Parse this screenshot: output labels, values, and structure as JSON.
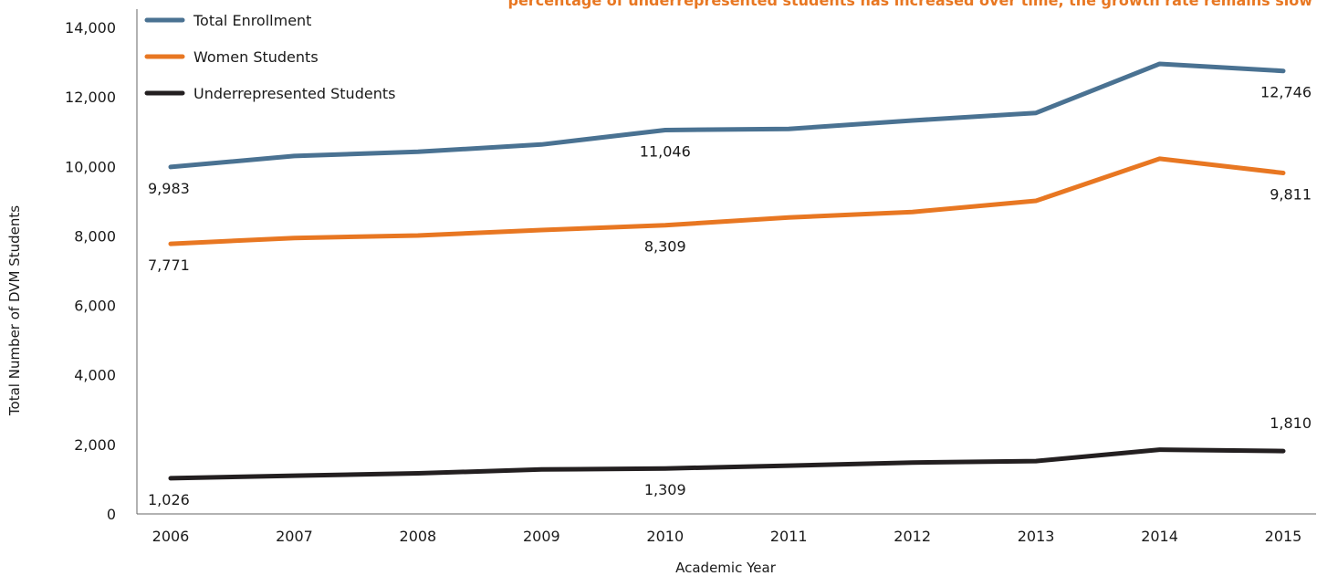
{
  "note": "percentage of underrepresented students has increased over time, the growth rate remains slow",
  "colors": {
    "accent": "#e87722",
    "axis": "#666666"
  },
  "chart_data": {
    "type": "line",
    "title": "",
    "xlabel": "Academic Year",
    "ylabel": "Total Number of DVM Students",
    "categories": [
      "2006",
      "2007",
      "2008",
      "2009",
      "2010",
      "2011",
      "2012",
      "2013",
      "2014",
      "2015"
    ],
    "ylim": [
      0,
      14000
    ],
    "yticks": [
      0,
      2000,
      4000,
      6000,
      8000,
      10000,
      12000,
      14000
    ],
    "ytick_labels": [
      "0",
      "2,000",
      "4,000",
      "6,000",
      "8,000",
      "10,000",
      "12,000",
      "14,000"
    ],
    "grid": false,
    "legend_position": "top-left",
    "series": [
      {
        "name": "Total Enrollment",
        "color": "#4a7292",
        "values": [
          9983,
          10300,
          10420,
          10630,
          11046,
          11080,
          11320,
          11540,
          12950,
          12746
        ],
        "labels": [
          {
            "index": 0,
            "text": "9,983",
            "pos": "below"
          },
          {
            "index": 4,
            "text": "11,046",
            "pos": "below"
          },
          {
            "index": 9,
            "text": "12,746",
            "pos": "below"
          }
        ]
      },
      {
        "name": "Women Students",
        "color": "#e87722",
        "values": [
          7771,
          7940,
          8010,
          8170,
          8309,
          8530,
          8690,
          9010,
          10220,
          9811
        ],
        "labels": [
          {
            "index": 0,
            "text": "7,771",
            "pos": "below"
          },
          {
            "index": 4,
            "text": "8,309",
            "pos": "below"
          },
          {
            "index": 9,
            "text": "9,811",
            "pos": "below"
          }
        ]
      },
      {
        "name": "Underrepresented Students",
        "color": "#231f20",
        "values": [
          1026,
          1100,
          1170,
          1280,
          1309,
          1390,
          1480,
          1520,
          1850,
          1810
        ],
        "labels": [
          {
            "index": 0,
            "text": "1,026",
            "pos": "below"
          },
          {
            "index": 4,
            "text": "1,309",
            "pos": "below"
          },
          {
            "index": 9,
            "text": "1,810",
            "pos": "above"
          }
        ]
      }
    ]
  }
}
